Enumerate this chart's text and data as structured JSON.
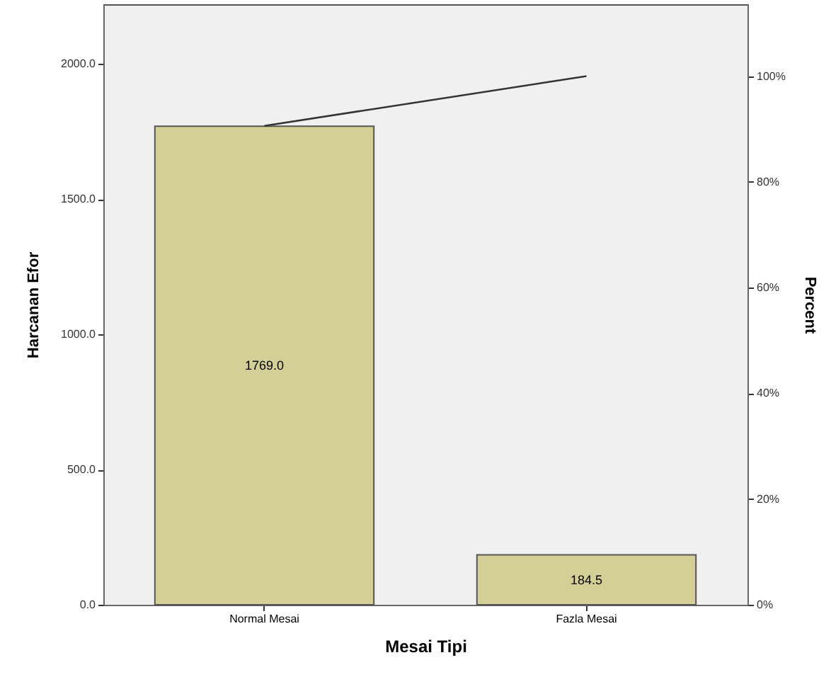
{
  "chart_data": {
    "type": "bar",
    "xlabel": "Mesai Tipi",
    "ylabel": "Harcanan Efor",
    "y2label": "Percent",
    "categories": [
      "Normal Mesai",
      "Fazla Mesai"
    ],
    "series": [
      {
        "color": "#d3cf97",
        "values": [
          1769.0,
          184.5
        ],
        "value_labels": [
          "1769.0",
          "184.5"
        ]
      },
      {
        "type": "line",
        "axis": "y2",
        "color": "#333333",
        "values": [
          90.6,
          100
        ]
      }
    ],
    "ylim": [
      0,
      2220
    ],
    "yticks": [
      {
        "value": 0,
        "label": "0.0"
      },
      {
        "value": 500,
        "label": "500.0"
      },
      {
        "value": 1000,
        "label": "1000.0"
      },
      {
        "value": 1500,
        "label": "1500.0"
      },
      {
        "value": 2000,
        "label": "2000.0"
      }
    ],
    "y2lim": [
      0,
      113.6
    ],
    "y2ticks": [
      {
        "value": 0,
        "label": "0%"
      },
      {
        "value": 20,
        "label": "20%"
      },
      {
        "value": 40,
        "label": "40%"
      },
      {
        "value": 60,
        "label": "60%"
      },
      {
        "value": 80,
        "label": "80%"
      },
      {
        "value": 100,
        "label": "100%"
      }
    ],
    "grid": false
  }
}
